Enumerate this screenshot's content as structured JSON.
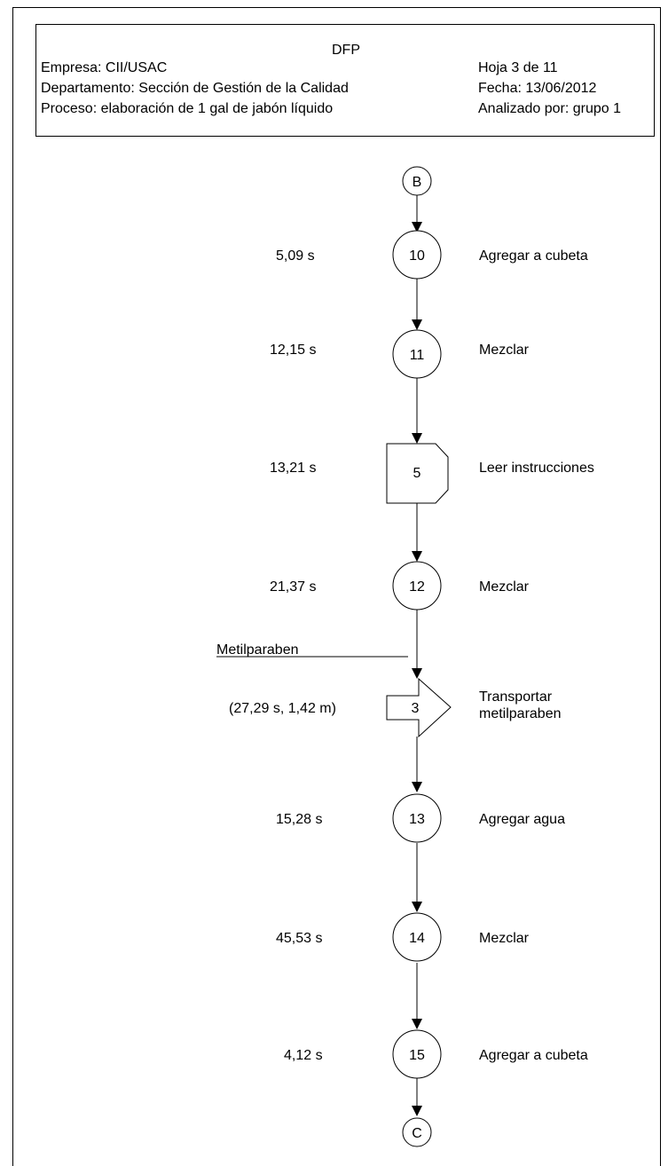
{
  "header": {
    "title": "DFP",
    "empresa": "Empresa: CII/USAC",
    "departamento": "Departamento: Sección de Gestión de la Calidad",
    "proceso": "Proceso: elaboración de 1 gal de jabón líquido",
    "hoja": "Hoja 3 de 11",
    "fecha": "Fecha: 13/06/2012",
    "analizado": "Analizado por: grupo 1"
  },
  "connectors": {
    "start": "B",
    "end": "C"
  },
  "steps": [
    {
      "type": "operation",
      "number": "10",
      "time": "5,09 s",
      "description": "Agregar a cubeta"
    },
    {
      "type": "operation",
      "number": "11",
      "time": "12,15 s",
      "description": "Mezclar"
    },
    {
      "type": "delay",
      "number": "5",
      "time": "13,21 s",
      "description": "Leer instrucciones"
    },
    {
      "type": "operation",
      "number": "12",
      "time": "21,37 s",
      "description": "Mezclar"
    },
    {
      "type": "transport",
      "number": "3",
      "time": "(27,29 s, 1,42 m)",
      "description_lines": [
        "Transportar",
        "metilparaben"
      ]
    },
    {
      "type": "operation",
      "number": "13",
      "time": "15,28 s",
      "description": "Agregar agua"
    },
    {
      "type": "operation",
      "number": "14",
      "time": "45,53 s",
      "description": "Mezclar"
    },
    {
      "type": "operation",
      "number": "15",
      "time": "4,12 s",
      "description": "Agregar a cubeta"
    }
  ],
  "material_input": {
    "label": "Metilparaben"
  }
}
